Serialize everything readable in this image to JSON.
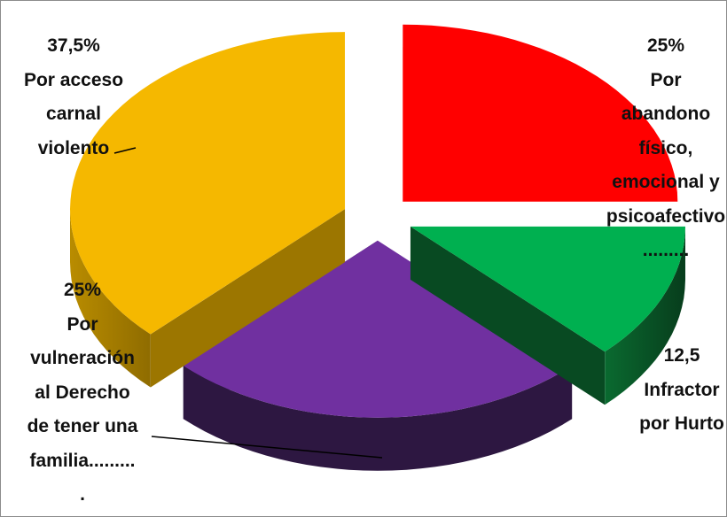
{
  "chart_data": {
    "type": "pie",
    "style": "3d-exploded",
    "legend": "none",
    "slices": [
      {
        "key": "acceso",
        "value": 37.5,
        "color": "#F5B800",
        "label_lines": [
          "37,5%",
          "Por acceso",
          "carnal",
          "violento"
        ]
      },
      {
        "key": "abandono",
        "value": 25,
        "color": "#7030A0",
        "label_lines": [
          "25%",
          "Por",
          "abandono",
          "físico,",
          "emocional y",
          "psicoafectivo",
          "........."
        ]
      },
      {
        "key": "hurto",
        "value": 12.5,
        "color": "#00B050",
        "label_lines": [
          "12,5",
          "Infractor",
          "por Hurto"
        ]
      },
      {
        "key": "vulneracion",
        "value": 25,
        "color": "#FF0000",
        "label_lines": [
          "25%",
          "Por",
          "vulneración",
          "al Derecho",
          "de tener una",
          "familia.........",
          "."
        ]
      }
    ]
  }
}
